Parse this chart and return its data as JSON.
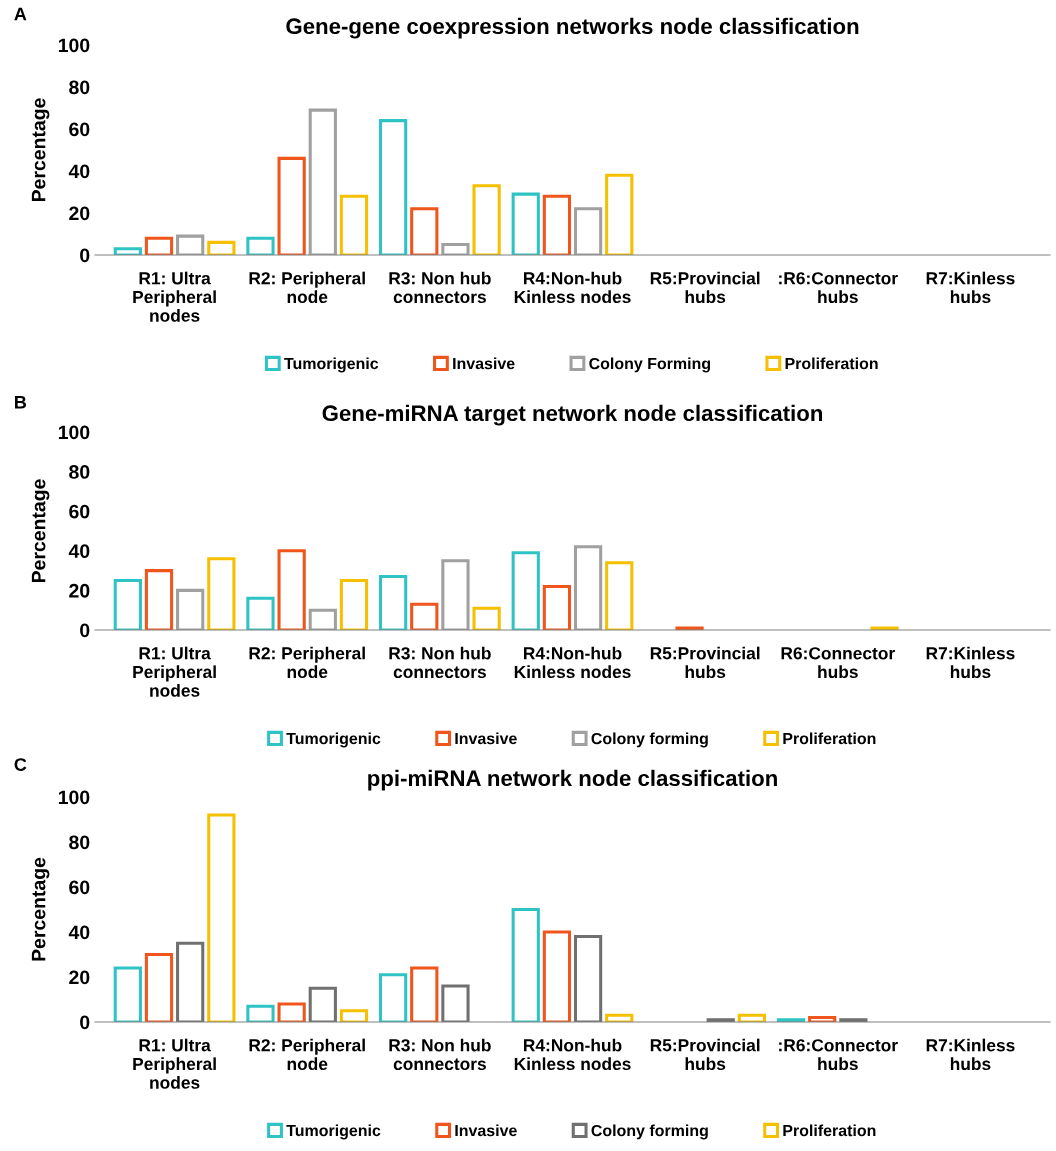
{
  "chart_data": [
    {
      "type": "bar",
      "title": "Gene-gene coexpression networks node classification",
      "ylabel": "Percentage",
      "annotations": [
        "A"
      ],
      "categories": [
        "R1: Ultra\nPeripheral\nnodes",
        "R2: Peripheral\nnode",
        "R3: Non hub\nconnectors",
        "R4:Non-hub\nKinless nodes",
        "R5:Provincial\nhubs",
        ":R6:Connector\nhubs",
        "R7:Kinless\nhubs"
      ],
      "series": [
        {
          "name": "Tumorigenic",
          "color": "#2ec4c6",
          "values": [
            3,
            8,
            64,
            29,
            null,
            null,
            null
          ]
        },
        {
          "name": "Invasive",
          "color": "#f0561c",
          "values": [
            8,
            46,
            22,
            28,
            null,
            null,
            null
          ]
        },
        {
          "name": "Colony Forming",
          "color": "#a0a0a0",
          "values": [
            9,
            69,
            5,
            22,
            null,
            null,
            null
          ]
        },
        {
          "name": "Proliferation",
          "color": "#f5c000",
          "values": [
            6,
            28,
            33,
            38,
            null,
            null,
            null
          ]
        }
      ],
      "ylim": [
        0,
        100
      ],
      "yticks": [
        0,
        20,
        40,
        60,
        80,
        100
      ],
      "grid": false,
      "legend": "bottom"
    },
    {
      "type": "bar",
      "title": "Gene-miRNA target network node classification",
      "ylabel": "Percentage",
      "annotations": [
        "B"
      ],
      "categories": [
        "R1: Ultra\nPeripheral\nnodes",
        "R2: Peripheral\nnode",
        "R3: Non hub\nconnectors",
        "R4:Non-hub\nKinless nodes",
        "R5:Provincial\nhubs",
        "R6:Connector\nhubs",
        "R7:Kinless\nhubs"
      ],
      "series": [
        {
          "name": "Tumorigenic",
          "color": "#2ec4c6",
          "values": [
            25,
            16,
            27,
            39,
            null,
            null,
            null
          ]
        },
        {
          "name": "Invasive",
          "color": "#f0561c",
          "values": [
            30,
            40,
            13,
            22,
            1,
            null,
            null
          ]
        },
        {
          "name": "Colony forming",
          "color": "#a0a0a0",
          "values": [
            20,
            10,
            35,
            42,
            null,
            null,
            null
          ]
        },
        {
          "name": "Proliferation",
          "color": "#f5c000",
          "values": [
            36,
            25,
            11,
            34,
            null,
            1,
            null
          ]
        }
      ],
      "ylim": [
        0,
        100
      ],
      "yticks": [
        0,
        20,
        40,
        60,
        80,
        100
      ],
      "grid": false,
      "legend": "bottom"
    },
    {
      "type": "bar",
      "title": "ppi-miRNA network node classification",
      "ylabel": "Percentage",
      "annotations": [
        "C"
      ],
      "categories": [
        "R1: Ultra\nPeripheral\nnodes",
        "R2: Peripheral\nnode",
        "R3: Non hub\nconnectors",
        "R4:Non-hub\nKinless nodes",
        "R5:Provincial\nhubs",
        ":R6:Connector\nhubs",
        "R7:Kinless\nhubs"
      ],
      "series": [
        {
          "name": "Tumorigenic",
          "color": "#2ec4c6",
          "values": [
            24,
            7,
            21,
            50,
            null,
            1,
            null
          ]
        },
        {
          "name": "Invasive",
          "color": "#f0561c",
          "values": [
            30,
            8,
            24,
            40,
            null,
            2,
            null
          ]
        },
        {
          "name": "Colony forming",
          "color": "#707070",
          "values": [
            35,
            15,
            16,
            38,
            1,
            1,
            null
          ]
        },
        {
          "name": "Proliferation",
          "color": "#f5c000",
          "values": [
            92,
            5,
            null,
            3,
            3,
            null,
            null
          ]
        }
      ],
      "ylim": [
        0,
        100
      ],
      "yticks": [
        0,
        20,
        40,
        60,
        80,
        100
      ],
      "grid": false,
      "legend": "bottom"
    }
  ]
}
